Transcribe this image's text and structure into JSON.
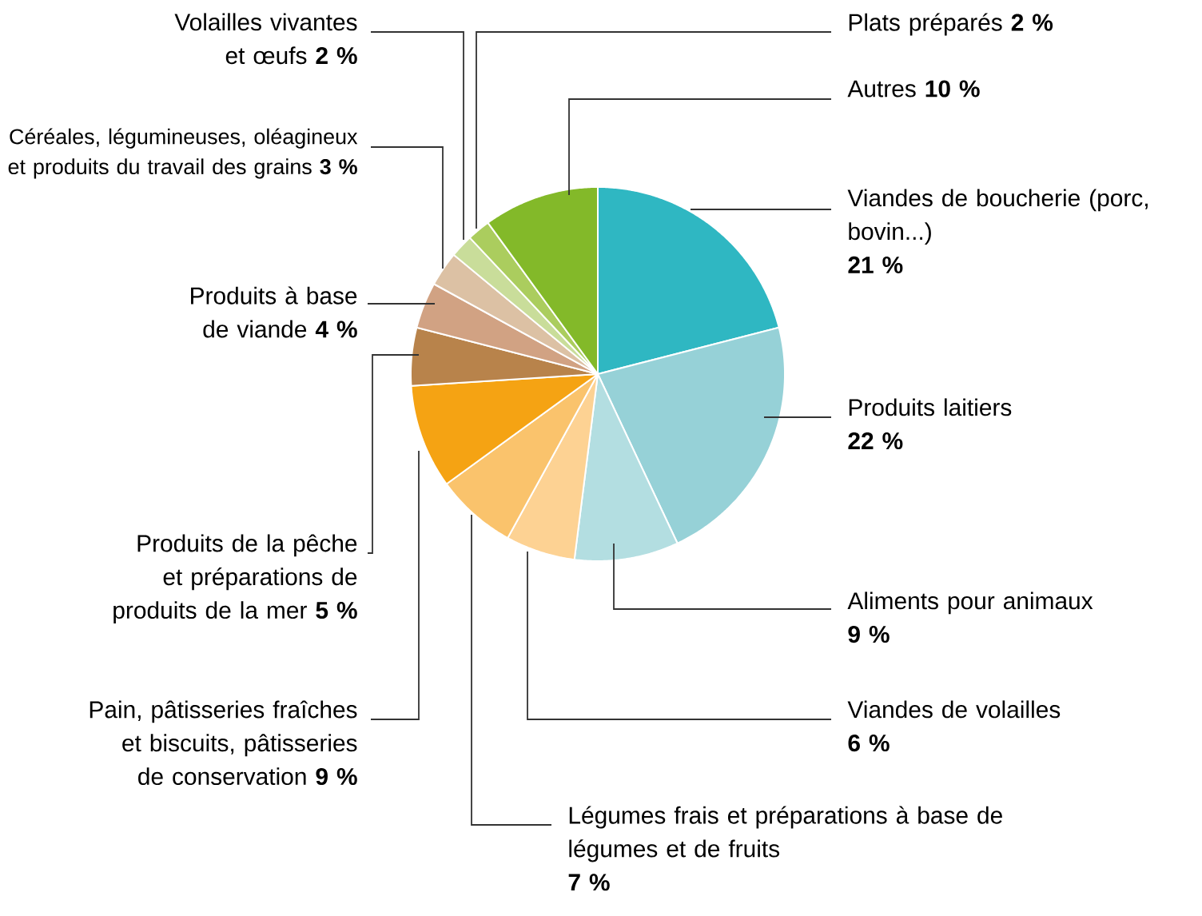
{
  "chart_data": {
    "type": "pie",
    "categories": [
      "Viandes de boucherie (porc, bovin...)",
      "Produits laitiers",
      "Aliments pour animaux",
      "Viandes de volailles",
      "Légumes frais et préparations à base de légumes et de fruits",
      "Pain, pâtisseries fraîches et biscuits, pâtisseries de conservation",
      "Produits de la pêche et préparations de produits de la mer",
      "Produits à base de viande",
      "Céréales, légumineuses, oléagineux et produits du travail des grains",
      "Volailles vivantes et œufs",
      "Plats préparés",
      "Autres"
    ],
    "values": [
      21,
      22,
      9,
      6,
      7,
      9,
      5,
      4,
      3,
      2,
      2,
      10
    ],
    "value_labels": [
      "21 %",
      "22 %",
      "9 %",
      "6 %",
      "7 %",
      "9 %",
      "5 %",
      "4 %",
      "3 %",
      "2 %",
      "2 %",
      "10 %"
    ],
    "colors": [
      "#2fb7c2",
      "#96d1d7",
      "#b3dee1",
      "#fdd293",
      "#fac36c",
      "#f5a313",
      "#b8834b",
      "#d1a283",
      "#dcc1a4",
      "#c9dd9a",
      "#abcd5e",
      "#83b929"
    ]
  }
}
